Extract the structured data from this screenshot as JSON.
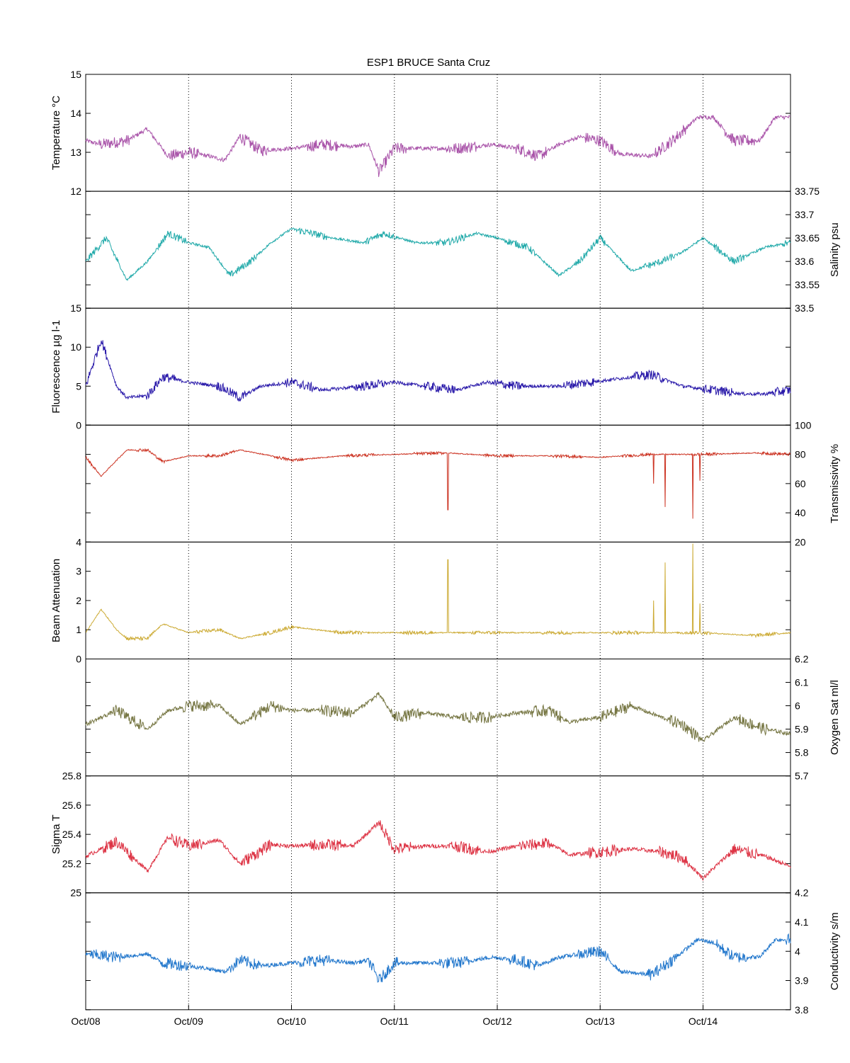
{
  "chart_data": {
    "type": "line",
    "title": "ESP1 BRUCE Santa Cruz",
    "x_ticks": [
      "Oct/08",
      "Oct/09",
      "Oct/10",
      "Oct/11",
      "Oct/12",
      "Oct/13",
      "Oct/14"
    ],
    "xlim_days": [
      8,
      14.85
    ],
    "grid": "vertical dotted at day ticks",
    "panels": [
      {
        "id": "temperature",
        "ylabel": "Temperature °C",
        "axis_side": "left",
        "ylim": [
          12,
          15
        ],
        "ticks": [
          12,
          13,
          14,
          15
        ],
        "tick_labels": [
          "12",
          "13",
          "14",
          "15"
        ],
        "color": "#aa55aa",
        "series": {
          "days": [
            8.0,
            8.15,
            8.4,
            8.6,
            8.8,
            9.0,
            9.2,
            9.35,
            9.5,
            9.7,
            10.0,
            10.3,
            10.6,
            10.75,
            10.85,
            11.0,
            11.3,
            11.6,
            11.95,
            12.2,
            12.4,
            12.6,
            12.8,
            13.0,
            13.2,
            13.5,
            13.7,
            13.95,
            14.1,
            14.3,
            14.55,
            14.7,
            14.85
          ],
          "values": [
            13.3,
            13.2,
            13.3,
            13.6,
            12.9,
            13.0,
            12.9,
            12.8,
            13.4,
            13.05,
            13.1,
            13.2,
            13.15,
            13.2,
            12.5,
            13.1,
            13.1,
            13.1,
            13.2,
            13.1,
            12.9,
            13.2,
            13.4,
            13.3,
            12.95,
            12.9,
            13.3,
            13.9,
            13.9,
            13.3,
            13.3,
            13.9,
            13.9
          ]
        },
        "noise": 0.3
      },
      {
        "id": "salinity",
        "ylabel": "Salinity psu",
        "axis_side": "right",
        "ylim": [
          33.5,
          33.75
        ],
        "ticks": [
          33.5,
          33.55,
          33.6,
          33.65,
          33.7,
          33.75
        ],
        "tick_labels": [
          "33.5",
          "33.55",
          "33.6",
          "33.65",
          "33.7",
          "33.75"
        ],
        "color": "#22aaaa",
        "series": {
          "days": [
            8.0,
            8.2,
            8.4,
            8.6,
            8.8,
            9.0,
            9.2,
            9.4,
            9.6,
            9.8,
            10.0,
            10.4,
            10.7,
            10.9,
            11.2,
            11.5,
            11.8,
            12.0,
            12.3,
            12.6,
            12.8,
            13.0,
            13.3,
            13.6,
            13.8,
            14.0,
            14.3,
            14.6,
            14.85
          ],
          "values": [
            33.6,
            33.65,
            33.56,
            33.6,
            33.66,
            33.64,
            33.63,
            33.57,
            33.6,
            33.64,
            33.67,
            33.65,
            33.64,
            33.66,
            33.64,
            33.64,
            33.66,
            33.65,
            33.63,
            33.57,
            33.6,
            33.65,
            33.58,
            33.6,
            33.62,
            33.65,
            33.6,
            33.63,
            33.64
          ]
        },
        "noise": 0.015
      },
      {
        "id": "fluorescence",
        "ylabel": "Fluorescence µg l-1",
        "axis_side": "left",
        "ylim": [
          0,
          15
        ],
        "ticks": [
          0,
          5,
          10,
          15
        ],
        "tick_labels": [
          "0",
          "5",
          "10",
          "15"
        ],
        "color": "#2a1aaa",
        "series": {
          "days": [
            8.0,
            8.15,
            8.3,
            8.4,
            8.6,
            8.75,
            9.0,
            9.3,
            9.5,
            9.7,
            10.0,
            10.3,
            10.7,
            11.0,
            11.3,
            11.6,
            11.9,
            12.2,
            12.6,
            12.9,
            13.2,
            13.5,
            13.8,
            14.1,
            14.4,
            14.6,
            14.85
          ],
          "values": [
            5.0,
            11.0,
            5.0,
            3.5,
            3.8,
            6.2,
            5.5,
            5.0,
            3.5,
            5.0,
            5.5,
            4.5,
            5.0,
            5.5,
            5.0,
            4.5,
            5.5,
            5.0,
            5.0,
            5.5,
            6.0,
            6.5,
            5.0,
            4.5,
            4.0,
            4.0,
            4.5
          ]
        },
        "noise": 1.2
      },
      {
        "id": "transmissivity",
        "ylabel": "Transmissivity %",
        "axis_side": "right",
        "ylim": [
          20,
          100
        ],
        "ticks": [
          20,
          40,
          60,
          80,
          100
        ],
        "tick_labels": [
          "20",
          "40",
          "60",
          "80",
          "100"
        ],
        "color": "#cc3322",
        "series": {
          "days": [
            8.0,
            8.15,
            8.3,
            8.4,
            8.6,
            8.75,
            9.0,
            9.3,
            9.5,
            9.8,
            10.0,
            10.5,
            11.0,
            11.5,
            12.0,
            12.5,
            13.0,
            13.5,
            14.0,
            14.5,
            14.85
          ],
          "values": [
            78,
            65,
            76,
            83,
            83,
            75,
            79,
            79,
            83,
            79,
            76,
            79,
            80,
            81,
            79,
            79,
            78,
            80,
            80,
            81,
            80
          ]
        },
        "noise": 2.0,
        "spikes": [
          {
            "day": 11.52,
            "value": 42
          },
          {
            "day": 13.52,
            "value": 60
          },
          {
            "day": 13.63,
            "value": 44
          },
          {
            "day": 13.9,
            "value": 36
          },
          {
            "day": 13.97,
            "value": 62
          }
        ]
      },
      {
        "id": "beam_attenuation",
        "ylabel": "Beam Attenuation",
        "axis_side": "left",
        "ylim": [
          0,
          4
        ],
        "ticks": [
          0,
          1,
          2,
          3,
          4
        ],
        "tick_labels": [
          "0",
          "1",
          "2",
          "3",
          "4"
        ],
        "color": "#ccaa33",
        "series": {
          "days": [
            8.0,
            8.15,
            8.3,
            8.4,
            8.6,
            8.75,
            9.0,
            9.3,
            9.5,
            9.8,
            10.0,
            10.5,
            11.0,
            11.5,
            12.0,
            12.5,
            13.0,
            13.5,
            14.0,
            14.5,
            14.85
          ],
          "values": [
            0.9,
            1.7,
            1.0,
            0.7,
            0.7,
            1.2,
            0.9,
            1.0,
            0.7,
            0.9,
            1.1,
            0.9,
            0.9,
            0.9,
            0.9,
            0.9,
            0.9,
            0.9,
            0.9,
            0.8,
            0.9
          ]
        },
        "noise": 0.12,
        "spikes": [
          {
            "day": 11.52,
            "value": 3.4
          },
          {
            "day": 13.52,
            "value": 2.0
          },
          {
            "day": 13.63,
            "value": 3.3
          },
          {
            "day": 13.9,
            "value": 3.95
          },
          {
            "day": 13.97,
            "value": 1.9
          }
        ]
      },
      {
        "id": "oxygen",
        "ylabel": "Oxygen Sat ml/l",
        "axis_side": "right",
        "ylim": [
          5.7,
          6.2
        ],
        "ticks": [
          5.7,
          5.8,
          5.9,
          6.0,
          6.1,
          6.2
        ],
        "tick_labels": [
          "5.7",
          "5.8",
          "5.9",
          "6",
          "6.1",
          "6.2"
        ],
        "color": "#777744",
        "series": {
          "days": [
            8.0,
            8.3,
            8.6,
            8.8,
            9.0,
            9.3,
            9.5,
            9.8,
            10.0,
            10.3,
            10.6,
            10.85,
            11.0,
            11.3,
            11.6,
            11.9,
            12.2,
            12.5,
            12.7,
            13.0,
            13.3,
            13.6,
            13.8,
            14.0,
            14.3,
            14.6,
            14.85
          ],
          "values": [
            5.92,
            5.98,
            5.9,
            5.98,
            6.0,
            6.0,
            5.92,
            6.0,
            5.98,
            5.98,
            5.97,
            6.05,
            5.95,
            5.97,
            5.95,
            5.95,
            5.97,
            5.98,
            5.93,
            5.95,
            6.0,
            5.95,
            5.92,
            5.85,
            5.95,
            5.9,
            5.88
          ]
        },
        "noise": 0.05
      },
      {
        "id": "sigma_t",
        "ylabel": "Sigma T",
        "axis_side": "left",
        "ylim": [
          25,
          25.8
        ],
        "ticks": [
          25,
          25.2,
          25.4,
          25.6,
          25.8
        ],
        "tick_labels": [
          "25",
          "25.2",
          "25.4",
          "25.6",
          "25.8"
        ],
        "color": "#dd3344",
        "series": {
          "days": [
            8.0,
            8.3,
            8.6,
            8.8,
            9.0,
            9.3,
            9.5,
            9.8,
            10.0,
            10.3,
            10.6,
            10.85,
            11.0,
            11.3,
            11.6,
            11.9,
            12.2,
            12.5,
            12.7,
            13.0,
            13.3,
            13.6,
            13.8,
            14.0,
            14.3,
            14.6,
            14.85
          ],
          "values": [
            25.25,
            25.35,
            25.15,
            25.38,
            25.32,
            25.36,
            25.2,
            25.33,
            25.32,
            25.33,
            25.32,
            25.48,
            25.3,
            25.32,
            25.32,
            25.28,
            25.32,
            25.34,
            25.26,
            25.28,
            25.3,
            25.28,
            25.24,
            25.1,
            25.3,
            25.25,
            25.18
          ]
        },
        "noise": 0.08
      },
      {
        "id": "conductivity",
        "ylabel": "Conductivity s/m",
        "axis_side": "right",
        "ylim": [
          3.8,
          4.2
        ],
        "ticks": [
          3.8,
          3.9,
          4.0,
          4.1,
          4.2
        ],
        "tick_labels": [
          "3.8",
          "3.9",
          "4",
          "4.1",
          "4.2"
        ],
        "color": "#2277cc",
        "series": {
          "days": [
            8.0,
            8.3,
            8.6,
            8.75,
            9.0,
            9.2,
            9.35,
            9.5,
            9.7,
            10.0,
            10.3,
            10.6,
            10.75,
            10.85,
            11.0,
            11.3,
            11.6,
            11.95,
            12.2,
            12.4,
            12.6,
            12.8,
            13.0,
            13.2,
            13.5,
            13.7,
            13.95,
            14.1,
            14.3,
            14.55,
            14.7,
            14.85
          ],
          "values": [
            3.99,
            3.98,
            3.99,
            3.96,
            3.95,
            3.94,
            3.93,
            3.97,
            3.95,
            3.96,
            3.97,
            3.96,
            3.97,
            3.9,
            3.96,
            3.96,
            3.96,
            3.98,
            3.97,
            3.95,
            3.98,
            3.99,
            4.0,
            3.93,
            3.92,
            3.97,
            4.04,
            4.03,
            3.98,
            3.98,
            4.04,
            4.04
          ]
        },
        "noise": 0.04
      }
    ]
  }
}
